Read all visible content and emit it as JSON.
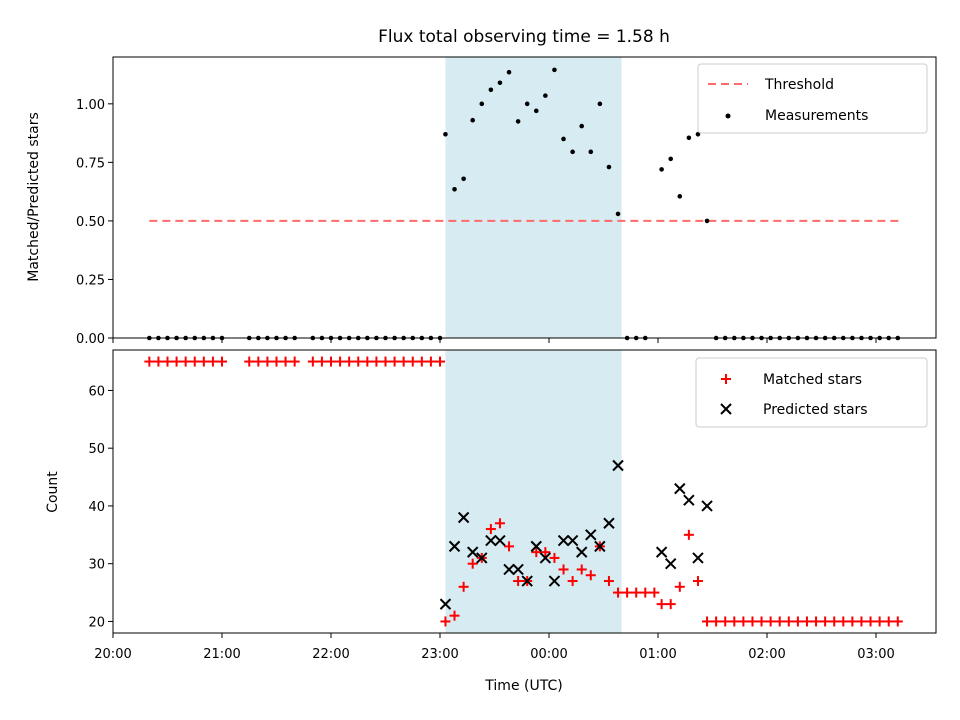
{
  "chart_data": {
    "type": "scatter",
    "title": "Flux total observing time = 1.58 h",
    "xlabel": "Time (UTC)",
    "x_ticks": [
      "20:00",
      "21:00",
      "22:00",
      "23:00",
      "00:00",
      "01:00",
      "02:00",
      "03:00"
    ],
    "shaded_interval": [
      "23:03",
      "00:40"
    ],
    "shaded_color": "#add8e6",
    "top_panel": {
      "ylabel": "Matched/Predicted stars",
      "ylim": [
        0,
        1.2
      ],
      "y_ticks": [
        "0.00",
        "0.25",
        "0.50",
        "0.75",
        "1.00"
      ],
      "legend_position": "upper right",
      "threshold": {
        "name": "Threshold",
        "value": 0.5,
        "x_range": [
          "20:20",
          "03:15"
        ],
        "color": "#ff6b6b"
      },
      "series": [
        {
          "name": "Measurements",
          "color": "#000000",
          "x": [
            "20:20",
            "20:25",
            "20:30",
            "20:35",
            "20:40",
            "20:45",
            "20:50",
            "20:55",
            "21:00",
            "21:15",
            "21:20",
            "21:25",
            "21:30",
            "21:35",
            "21:40",
            "21:50",
            "21:55",
            "22:00",
            "22:05",
            "22:10",
            "22:15",
            "22:20",
            "22:25",
            "22:30",
            "22:35",
            "22:40",
            "22:45",
            "22:50",
            "22:55",
            "23:00",
            "23:03",
            "23:08",
            "23:13",
            "23:18",
            "23:23",
            "23:28",
            "23:33",
            "23:38",
            "23:43",
            "23:48",
            "23:53",
            "23:58",
            "00:03",
            "00:08",
            "00:13",
            "00:18",
            "00:23",
            "00:28",
            "00:33",
            "00:38",
            "00:43",
            "00:48",
            "00:53",
            "01:02",
            "01:07",
            "01:12",
            "01:17",
            "01:22",
            "01:27",
            "01:32",
            "01:37",
            "01:42",
            "01:47",
            "01:52",
            "01:57",
            "02:02",
            "02:07",
            "02:12",
            "02:17",
            "02:22",
            "02:27",
            "02:32",
            "02:37",
            "02:42",
            "02:47",
            "02:52",
            "02:57",
            "03:02",
            "03:07",
            "03:12"
          ],
          "y": [
            0,
            0,
            0,
            0,
            0,
            0,
            0,
            0,
            0,
            0,
            0,
            0,
            0,
            0,
            0,
            0,
            0,
            0,
            0,
            0,
            0,
            0,
            0,
            0,
            0,
            0,
            0,
            0,
            0,
            0,
            0.87,
            0.635,
            0.68,
            0.93,
            1.0,
            1.06,
            1.09,
            1.135,
            0.925,
            1.0,
            0.97,
            1.035,
            1.145,
            0.85,
            0.795,
            0.905,
            0.795,
            1.0,
            0.73,
            0.53,
            0,
            0,
            0,
            0.72,
            0.765,
            0.605,
            0.855,
            0.87,
            0.5,
            0,
            0,
            0,
            0,
            0,
            0,
            0,
            0,
            0,
            0,
            0,
            0,
            0,
            0,
            0,
            0,
            0,
            0,
            0,
            0,
            0
          ]
        }
      ]
    },
    "bottom_panel": {
      "ylabel": "Count",
      "ylim": [
        18,
        67
      ],
      "y_ticks": [
        "20",
        "30",
        "40",
        "50",
        "60"
      ],
      "legend_position": "upper right",
      "series": [
        {
          "name": "Matched stars",
          "marker": "plus",
          "color": "#ff0000",
          "x": [
            "20:20",
            "20:25",
            "20:30",
            "20:35",
            "20:40",
            "20:45",
            "20:50",
            "20:55",
            "21:00",
            "21:15",
            "21:20",
            "21:25",
            "21:30",
            "21:35",
            "21:40",
            "21:50",
            "21:55",
            "22:00",
            "22:05",
            "22:10",
            "22:15",
            "22:20",
            "22:25",
            "22:30",
            "22:35",
            "22:40",
            "22:45",
            "22:50",
            "22:55",
            "23:00",
            "23:03",
            "23:08",
            "23:13",
            "23:18",
            "23:23",
            "23:28",
            "23:33",
            "23:38",
            "23:43",
            "23:48",
            "23:53",
            "23:58",
            "00:03",
            "00:08",
            "00:13",
            "00:18",
            "00:23",
            "00:28",
            "00:33",
            "00:38",
            "00:43",
            "00:48",
            "00:53",
            "00:58",
            "01:02",
            "01:07",
            "01:12",
            "01:17",
            "01:22",
            "01:27",
            "01:32",
            "01:37",
            "01:42",
            "01:47",
            "01:52",
            "01:57",
            "02:02",
            "02:07",
            "02:12",
            "02:17",
            "02:22",
            "02:27",
            "02:32",
            "02:37",
            "02:42",
            "02:47",
            "02:52",
            "02:57",
            "03:02",
            "03:07",
            "03:12"
          ],
          "y": [
            65,
            65,
            65,
            65,
            65,
            65,
            65,
            65,
            65,
            65,
            65,
            65,
            65,
            65,
            65,
            65,
            65,
            65,
            65,
            65,
            65,
            65,
            65,
            65,
            65,
            65,
            65,
            65,
            65,
            65,
            20,
            21,
            26,
            30,
            31,
            36,
            37,
            33,
            27,
            27,
            32,
            32,
            31,
            29,
            27,
            29,
            28,
            33,
            27,
            25,
            25,
            25,
            25,
            25,
            23,
            23,
            26,
            35,
            27,
            20,
            20,
            20,
            20,
            20,
            20,
            20,
            20,
            20,
            20,
            20,
            20,
            20,
            20,
            20,
            20,
            20,
            20,
            20,
            20,
            20,
            20
          ]
        },
        {
          "name": "Predicted stars",
          "marker": "x",
          "color": "#000000",
          "x": [
            "23:03",
            "23:08",
            "23:13",
            "23:18",
            "23:23",
            "23:28",
            "23:33",
            "23:38",
            "23:43",
            "23:48",
            "23:53",
            "23:58",
            "00:03",
            "00:08",
            "00:13",
            "00:18",
            "00:23",
            "00:28",
            "00:33",
            "00:38",
            "01:02",
            "01:07",
            "01:12",
            "01:17",
            "01:22",
            "01:27"
          ],
          "y": [
            23,
            33,
            38,
            32,
            31,
            34,
            34,
            29,
            29,
            27,
            33,
            31,
            27,
            34,
            34,
            32,
            35,
            33,
            37,
            47,
            32,
            30,
            43,
            41,
            31,
            40
          ]
        }
      ]
    }
  }
}
